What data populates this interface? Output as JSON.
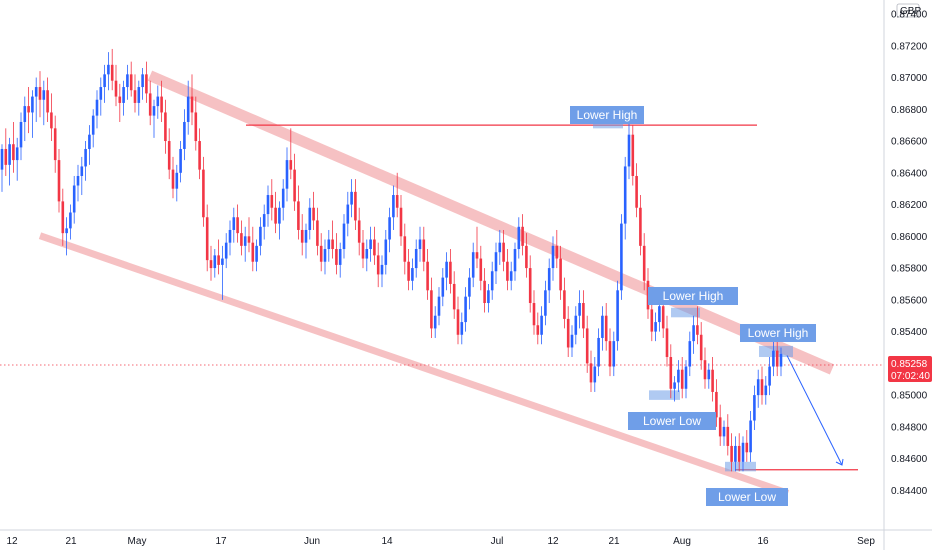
{
  "currency_label": "GBP",
  "colors": {
    "up": "#2962ff",
    "down": "#f23645",
    "channel": "#f5b6b8",
    "highlight": "#6f9ee8",
    "label_bg": "#6f9ee8",
    "hline": "#f23645",
    "projection": "#2962ff",
    "price_tag": "#f23645"
  },
  "last_price": {
    "value": "0.85258",
    "countdown": "07:02:40"
  },
  "chart_data": {
    "type": "candlestick",
    "y_range": [
      0.8432,
      0.8752
    ],
    "y_ticks": [
      "0.87400",
      "0.87200",
      "0.87000",
      "0.86800",
      "0.86600",
      "0.86400",
      "0.86200",
      "0.86000",
      "0.85800",
      "0.85600",
      "0.85400",
      "0.85200",
      "0.85000",
      "0.84800",
      "0.84600",
      "0.84400"
    ],
    "x_ticks": [
      "12",
      "21",
      "May",
      "17",
      "Jun",
      "14",
      "Jul",
      "12",
      "21",
      "Aug",
      "16",
      "Sep"
    ],
    "horizontal_levels": [
      0.867,
      0.8453
    ],
    "trend_channel": {
      "upper_start": {
        "time": "21",
        "price": 0.87
      },
      "upper_end": {
        "time": "16+",
        "price": 0.8515
      },
      "lower_start": {
        "time": "12",
        "price": 0.86
      },
      "lower_end": {
        "time": "16",
        "price": 0.8439
      }
    },
    "annotations": [
      {
        "text": "Lower High",
        "price": 0.8678,
        "zone": [
          0.8668,
          0.8674
        ]
      },
      {
        "text": "Lower High",
        "price": 0.8562,
        "zone": [
          0.8549,
          0.8555
        ]
      },
      {
        "text": "Lower Low",
        "price": 0.8491,
        "zone": [
          0.8497,
          0.8503
        ]
      },
      {
        "text": "Lower High",
        "price": 0.8538,
        "zone": [
          0.8524,
          0.8531
        ]
      },
      {
        "text": "Lower Low",
        "price": 0.8443,
        "zone": [
          0.8452,
          0.8458
        ]
      }
    ],
    "projection": {
      "from_price": 0.8525,
      "to_price": 0.8456
    },
    "candles": [
      [
        0.8642,
        0.8658,
        0.8628,
        0.8655
      ],
      [
        0.8655,
        0.8668,
        0.8638,
        0.8645
      ],
      [
        0.8645,
        0.8662,
        0.8632,
        0.8658
      ],
      [
        0.8658,
        0.8672,
        0.864,
        0.8648
      ],
      [
        0.8648,
        0.8662,
        0.8635,
        0.8656
      ],
      [
        0.8656,
        0.8678,
        0.8648,
        0.8672
      ],
      [
        0.8672,
        0.8688,
        0.866,
        0.8682
      ],
      [
        0.8682,
        0.8694,
        0.8665,
        0.8678
      ],
      [
        0.8678,
        0.8692,
        0.8662,
        0.8688
      ],
      [
        0.8688,
        0.87,
        0.8672,
        0.8694
      ],
      [
        0.8694,
        0.8704,
        0.8675,
        0.8686
      ],
      [
        0.8686,
        0.8698,
        0.867,
        0.8692
      ],
      [
        0.8692,
        0.87,
        0.8672,
        0.8678
      ],
      [
        0.8678,
        0.869,
        0.866,
        0.8668
      ],
      [
        0.8668,
        0.8676,
        0.864,
        0.8648
      ],
      [
        0.8648,
        0.8655,
        0.8615,
        0.8622
      ],
      [
        0.8622,
        0.863,
        0.8594,
        0.8602
      ],
      [
        0.8602,
        0.8612,
        0.8588,
        0.8605
      ],
      [
        0.8605,
        0.862,
        0.8598,
        0.8615
      ],
      [
        0.8615,
        0.8638,
        0.8608,
        0.8632
      ],
      [
        0.8632,
        0.8645,
        0.8622,
        0.8638
      ],
      [
        0.8638,
        0.865,
        0.8626,
        0.8644
      ],
      [
        0.8644,
        0.866,
        0.8635,
        0.8655
      ],
      [
        0.8655,
        0.867,
        0.8645,
        0.8664
      ],
      [
        0.8664,
        0.868,
        0.8656,
        0.8676
      ],
      [
        0.8676,
        0.8692,
        0.8668,
        0.8686
      ],
      [
        0.8686,
        0.87,
        0.8676,
        0.8694
      ],
      [
        0.8694,
        0.8708,
        0.8684,
        0.8702
      ],
      [
        0.8702,
        0.8716,
        0.8692,
        0.8708
      ],
      [
        0.8708,
        0.8718,
        0.8692,
        0.8698
      ],
      [
        0.8698,
        0.8708,
        0.8682,
        0.8688
      ],
      [
        0.8688,
        0.8696,
        0.8672,
        0.8684
      ],
      [
        0.8684,
        0.8698,
        0.8676,
        0.8694
      ],
      [
        0.8694,
        0.8708,
        0.8686,
        0.8702
      ],
      [
        0.8702,
        0.871,
        0.8688,
        0.8692
      ],
      [
        0.8692,
        0.8702,
        0.8678,
        0.8684
      ],
      [
        0.8684,
        0.8698,
        0.8676,
        0.8694
      ],
      [
        0.8694,
        0.8706,
        0.8686,
        0.8702
      ],
      [
        0.8702,
        0.871,
        0.8684,
        0.869
      ],
      [
        0.869,
        0.8698,
        0.867,
        0.8676
      ],
      [
        0.8676,
        0.8686,
        0.8662,
        0.8682
      ],
      [
        0.8682,
        0.8695,
        0.8674,
        0.8688
      ],
      [
        0.8688,
        0.8698,
        0.8672,
        0.8678
      ],
      [
        0.8678,
        0.8686,
        0.8652,
        0.866
      ],
      [
        0.866,
        0.8668,
        0.8636,
        0.8642
      ],
      [
        0.8642,
        0.865,
        0.8624,
        0.863
      ],
      [
        0.863,
        0.8645,
        0.8622,
        0.864
      ],
      [
        0.864,
        0.866,
        0.8634,
        0.8655
      ],
      [
        0.8655,
        0.868,
        0.8648,
        0.8672
      ],
      [
        0.8672,
        0.8698,
        0.8664,
        0.8688
      ],
      [
        0.8688,
        0.8702,
        0.867,
        0.8678
      ],
      [
        0.8678,
        0.8688,
        0.8654,
        0.866
      ],
      [
        0.866,
        0.8668,
        0.8636,
        0.8642
      ],
      [
        0.8642,
        0.865,
        0.8606,
        0.8612
      ],
      [
        0.8612,
        0.862,
        0.8578,
        0.8585
      ],
      [
        0.8585,
        0.8594,
        0.8572,
        0.858
      ],
      [
        0.858,
        0.8592,
        0.8574,
        0.8588
      ],
      [
        0.8588,
        0.8598,
        0.8576,
        0.8582
      ],
      [
        0.8582,
        0.8594,
        0.856,
        0.8586
      ],
      [
        0.8586,
        0.8602,
        0.858,
        0.8596
      ],
      [
        0.8596,
        0.861,
        0.8588,
        0.8604
      ],
      [
        0.8604,
        0.8618,
        0.8596,
        0.8612
      ],
      [
        0.8612,
        0.862,
        0.8596,
        0.8602
      ],
      [
        0.8602,
        0.861,
        0.8588,
        0.8594
      ],
      [
        0.8594,
        0.8606,
        0.8584,
        0.86
      ],
      [
        0.86,
        0.8612,
        0.859,
        0.8596
      ],
      [
        0.8596,
        0.8606,
        0.8578,
        0.8584
      ],
      [
        0.8584,
        0.8598,
        0.8578,
        0.8594
      ],
      [
        0.8594,
        0.8612,
        0.8588,
        0.8606
      ],
      [
        0.8606,
        0.862,
        0.8598,
        0.8614
      ],
      [
        0.8614,
        0.8632,
        0.8606,
        0.8626
      ],
      [
        0.8626,
        0.8636,
        0.861,
        0.8618
      ],
      [
        0.8618,
        0.8628,
        0.8602,
        0.8608
      ],
      [
        0.8608,
        0.8622,
        0.8598,
        0.8618
      ],
      [
        0.8618,
        0.8636,
        0.861,
        0.863
      ],
      [
        0.863,
        0.8656,
        0.8622,
        0.8648
      ],
      [
        0.8648,
        0.8668,
        0.8636,
        0.8642
      ],
      [
        0.8642,
        0.8652,
        0.8616,
        0.8622
      ],
      [
        0.8622,
        0.8632,
        0.8598,
        0.8604
      ],
      [
        0.8604,
        0.8614,
        0.8588,
        0.8596
      ],
      [
        0.8596,
        0.8608,
        0.8586,
        0.8604
      ],
      [
        0.8604,
        0.8624,
        0.8598,
        0.8618
      ],
      [
        0.8618,
        0.8628,
        0.8604,
        0.861
      ],
      [
        0.861,
        0.8618,
        0.8588,
        0.8594
      ],
      [
        0.8594,
        0.8602,
        0.8578,
        0.8584
      ],
      [
        0.8584,
        0.8598,
        0.8576,
        0.8592
      ],
      [
        0.8592,
        0.8604,
        0.8584,
        0.8598
      ],
      [
        0.8598,
        0.861,
        0.8586,
        0.8592
      ],
      [
        0.8592,
        0.8602,
        0.8576,
        0.8582
      ],
      [
        0.8582,
        0.8596,
        0.8574,
        0.8592
      ],
      [
        0.8592,
        0.8614,
        0.8586,
        0.8608
      ],
      [
        0.8608,
        0.8628,
        0.86,
        0.862
      ],
      [
        0.862,
        0.8636,
        0.8612,
        0.8628
      ],
      [
        0.8628,
        0.8636,
        0.8604,
        0.861
      ],
      [
        0.861,
        0.8618,
        0.8588,
        0.8596
      ],
      [
        0.8596,
        0.8604,
        0.858,
        0.8586
      ],
      [
        0.8586,
        0.8598,
        0.8578,
        0.8592
      ],
      [
        0.8592,
        0.8606,
        0.8584,
        0.8598
      ],
      [
        0.8598,
        0.8606,
        0.8582,
        0.8588
      ],
      [
        0.8588,
        0.8596,
        0.8568,
        0.8576
      ],
      [
        0.8576,
        0.8588,
        0.8568,
        0.8582
      ],
      [
        0.8582,
        0.8604,
        0.8576,
        0.8598
      ],
      [
        0.8598,
        0.8618,
        0.859,
        0.8612
      ],
      [
        0.8612,
        0.8632,
        0.8604,
        0.8626
      ],
      [
        0.8626,
        0.864,
        0.8612,
        0.8618
      ],
      [
        0.8618,
        0.8626,
        0.8594,
        0.86
      ],
      [
        0.86,
        0.8608,
        0.8576,
        0.8584
      ],
      [
        0.8584,
        0.8592,
        0.8566,
        0.8572
      ],
      [
        0.8572,
        0.8586,
        0.8566,
        0.858
      ],
      [
        0.858,
        0.8598,
        0.8574,
        0.8592
      ],
      [
        0.8592,
        0.8606,
        0.8584,
        0.8598
      ],
      [
        0.8598,
        0.8606,
        0.8578,
        0.8584
      ],
      [
        0.8584,
        0.8592,
        0.856,
        0.8566
      ],
      [
        0.8566,
        0.8574,
        0.8536,
        0.8542
      ],
      [
        0.8542,
        0.8556,
        0.8536,
        0.855
      ],
      [
        0.855,
        0.8568,
        0.8544,
        0.8562
      ],
      [
        0.8562,
        0.858,
        0.8556,
        0.8574
      ],
      [
        0.8574,
        0.859,
        0.8566,
        0.8584
      ],
      [
        0.8584,
        0.8592,
        0.8564,
        0.857
      ],
      [
        0.857,
        0.8578,
        0.8548,
        0.8554
      ],
      [
        0.8554,
        0.8562,
        0.8532,
        0.8538
      ],
      [
        0.8538,
        0.8552,
        0.8532,
        0.8546
      ],
      [
        0.8546,
        0.8568,
        0.854,
        0.8562
      ],
      [
        0.8562,
        0.858,
        0.8554,
        0.8574
      ],
      [
        0.8574,
        0.8596,
        0.8568,
        0.859
      ],
      [
        0.859,
        0.8606,
        0.858,
        0.8586
      ],
      [
        0.8586,
        0.8594,
        0.8566,
        0.8572
      ],
      [
        0.8572,
        0.858,
        0.8552,
        0.8558
      ],
      [
        0.8558,
        0.857,
        0.8552,
        0.8566
      ],
      [
        0.8566,
        0.8584,
        0.856,
        0.8578
      ],
      [
        0.8578,
        0.8596,
        0.857,
        0.859
      ],
      [
        0.859,
        0.8604,
        0.8582,
        0.8596
      ],
      [
        0.8596,
        0.8604,
        0.8578,
        0.8584
      ],
      [
        0.8584,
        0.8592,
        0.8566,
        0.8572
      ],
      [
        0.8572,
        0.8584,
        0.8566,
        0.8578
      ],
      [
        0.8578,
        0.8596,
        0.8572,
        0.8592
      ],
      [
        0.8592,
        0.8612,
        0.8586,
        0.8606
      ],
      [
        0.8606,
        0.8614,
        0.8588,
        0.8594
      ],
      [
        0.8594,
        0.8602,
        0.8574,
        0.858
      ],
      [
        0.858,
        0.8588,
        0.8552,
        0.8558
      ],
      [
        0.8558,
        0.8566,
        0.8538,
        0.8544
      ],
      [
        0.8544,
        0.8552,
        0.8532,
        0.8538
      ],
      [
        0.8538,
        0.8556,
        0.8532,
        0.855
      ],
      [
        0.855,
        0.8572,
        0.8544,
        0.8566
      ],
      [
        0.8566,
        0.8586,
        0.8558,
        0.858
      ],
      [
        0.858,
        0.86,
        0.8572,
        0.8594
      ],
      [
        0.8594,
        0.8604,
        0.858,
        0.8586
      ],
      [
        0.8586,
        0.8594,
        0.856,
        0.8566
      ],
      [
        0.8566,
        0.8574,
        0.8542,
        0.8548
      ],
      [
        0.8548,
        0.8556,
        0.8524,
        0.853
      ],
      [
        0.853,
        0.8544,
        0.8524,
        0.8538
      ],
      [
        0.8538,
        0.8556,
        0.8532,
        0.855
      ],
      [
        0.855,
        0.8566,
        0.8542,
        0.8558
      ],
      [
        0.8558,
        0.8566,
        0.8536,
        0.8542
      ],
      [
        0.8542,
        0.855,
        0.8514,
        0.852
      ],
      [
        0.852,
        0.8528,
        0.8502,
        0.8508
      ],
      [
        0.8508,
        0.8524,
        0.8502,
        0.8518
      ],
      [
        0.8518,
        0.8542,
        0.8512,
        0.8536
      ],
      [
        0.8536,
        0.8556,
        0.8528,
        0.855
      ],
      [
        0.855,
        0.8558,
        0.8528,
        0.8534
      ],
      [
        0.8534,
        0.8542,
        0.8512,
        0.8518
      ],
      [
        0.8518,
        0.854,
        0.8512,
        0.8534
      ],
      [
        0.8534,
        0.8572,
        0.8528,
        0.8566
      ],
      [
        0.8566,
        0.8614,
        0.856,
        0.8608
      ],
      [
        0.8608,
        0.865,
        0.8598,
        0.8644
      ],
      [
        0.8644,
        0.8672,
        0.8636,
        0.8664
      ],
      [
        0.8664,
        0.867,
        0.8632,
        0.8638
      ],
      [
        0.8638,
        0.8646,
        0.8612,
        0.8618
      ],
      [
        0.8618,
        0.8626,
        0.8588,
        0.8594
      ],
      [
        0.8594,
        0.8602,
        0.8566,
        0.8572
      ],
      [
        0.8572,
        0.858,
        0.8548,
        0.8554
      ],
      [
        0.8554,
        0.8562,
        0.8534,
        0.854
      ],
      [
        0.854,
        0.8552,
        0.8534,
        0.8546
      ],
      [
        0.8546,
        0.8562,
        0.854,
        0.8556
      ],
      [
        0.8556,
        0.8564,
        0.8536,
        0.8542
      ],
      [
        0.8542,
        0.855,
        0.8518,
        0.8524
      ],
      [
        0.8524,
        0.8532,
        0.8498,
        0.8504
      ],
      [
        0.8504,
        0.8512,
        0.8496,
        0.8508
      ],
      [
        0.8508,
        0.8522,
        0.8502,
        0.8516
      ],
      [
        0.8516,
        0.8524,
        0.8498,
        0.8504
      ],
      [
        0.8504,
        0.8522,
        0.8498,
        0.8518
      ],
      [
        0.8518,
        0.854,
        0.8512,
        0.8534
      ],
      [
        0.8534,
        0.855,
        0.8526,
        0.8544
      ],
      [
        0.8544,
        0.8556,
        0.8532,
        0.8538
      ],
      [
        0.8538,
        0.8546,
        0.8516,
        0.8522
      ],
      [
        0.8522,
        0.853,
        0.8504,
        0.851
      ],
      [
        0.851,
        0.852,
        0.8504,
        0.8516
      ],
      [
        0.8516,
        0.8524,
        0.8496,
        0.8502
      ],
      [
        0.8502,
        0.851,
        0.848,
        0.8486
      ],
      [
        0.8486,
        0.8494,
        0.8468,
        0.8474
      ],
      [
        0.8474,
        0.8484,
        0.8468,
        0.848
      ],
      [
        0.848,
        0.8488,
        0.8462,
        0.8468
      ],
      [
        0.8468,
        0.8476,
        0.8452,
        0.8458
      ],
      [
        0.8458,
        0.8474,
        0.8452,
        0.8468
      ],
      [
        0.8468,
        0.8476,
        0.8452,
        0.8458
      ],
      [
        0.8458,
        0.8474,
        0.8452,
        0.847
      ],
      [
        0.847,
        0.8478,
        0.8458,
        0.8464
      ],
      [
        0.8464,
        0.849,
        0.8458,
        0.8484
      ],
      [
        0.8484,
        0.8506,
        0.8478,
        0.85
      ],
      [
        0.85,
        0.8516,
        0.8492,
        0.851
      ],
      [
        0.851,
        0.8518,
        0.8494,
        0.85
      ],
      [
        0.85,
        0.8512,
        0.8494,
        0.8506
      ],
      [
        0.8506,
        0.8524,
        0.85,
        0.8518
      ],
      [
        0.8518,
        0.8534,
        0.8512,
        0.8528
      ],
      [
        0.8528,
        0.8536,
        0.8512,
        0.8518
      ],
      [
        0.8518,
        0.853,
        0.8512,
        0.8526
      ]
    ]
  }
}
